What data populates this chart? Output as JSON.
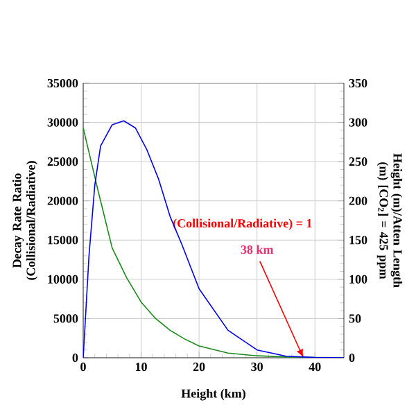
{
  "chart_data": {
    "type": "line",
    "xlabel": "Height (km)",
    "ylabel": "Decay Rate Ratio (Collisional/Radiative)",
    "y2label": "Height (m)/Atten Length (m) [CO$_{2}$] = 425 ppm",
    "xlim": [
      0,
      45
    ],
    "xticks": [
      0,
      10,
      20,
      30,
      40
    ],
    "ylim": [
      0,
      35000
    ],
    "yticks": [
      0,
      5000,
      10000,
      15000,
      20000,
      25000,
      30000,
      35000
    ],
    "y2lim": [
      0,
      350
    ],
    "y2ticks": [
      0,
      50,
      100,
      150,
      200,
      250,
      300,
      350
    ],
    "grid": true,
    "marker": "none",
    "line_style": "solid",
    "series": [
      {
        "color": "#1a8a1a",
        "x": [
          0,
          2.5,
          5,
          7.5,
          10,
          12.5,
          15,
          17.5,
          20,
          25,
          30,
          35,
          40,
          45
        ],
        "values": [
          29300,
          21500,
          14000,
          10200,
          7100,
          5000,
          3500,
          2400,
          1500,
          600,
          250,
          100,
          30,
          10
        ]
      },
      {
        "color": "#0000ee",
        "axis": "y2",
        "x": [
          0,
          1,
          2,
          3,
          5,
          7,
          9,
          11,
          13,
          15,
          17,
          20,
          25,
          30,
          35,
          40,
          45
        ],
        "values": [
          0,
          130,
          220,
          270,
          297,
          302,
          293,
          265,
          228,
          180,
          145,
          88,
          35,
          10,
          2,
          0.3,
          0
        ]
      }
    ],
    "annotations": [
      "(Collisional/Radiative) = 1",
      {
        "text": "38 km",
        "x": 38,
        "y": 0
      }
    ]
  }
}
